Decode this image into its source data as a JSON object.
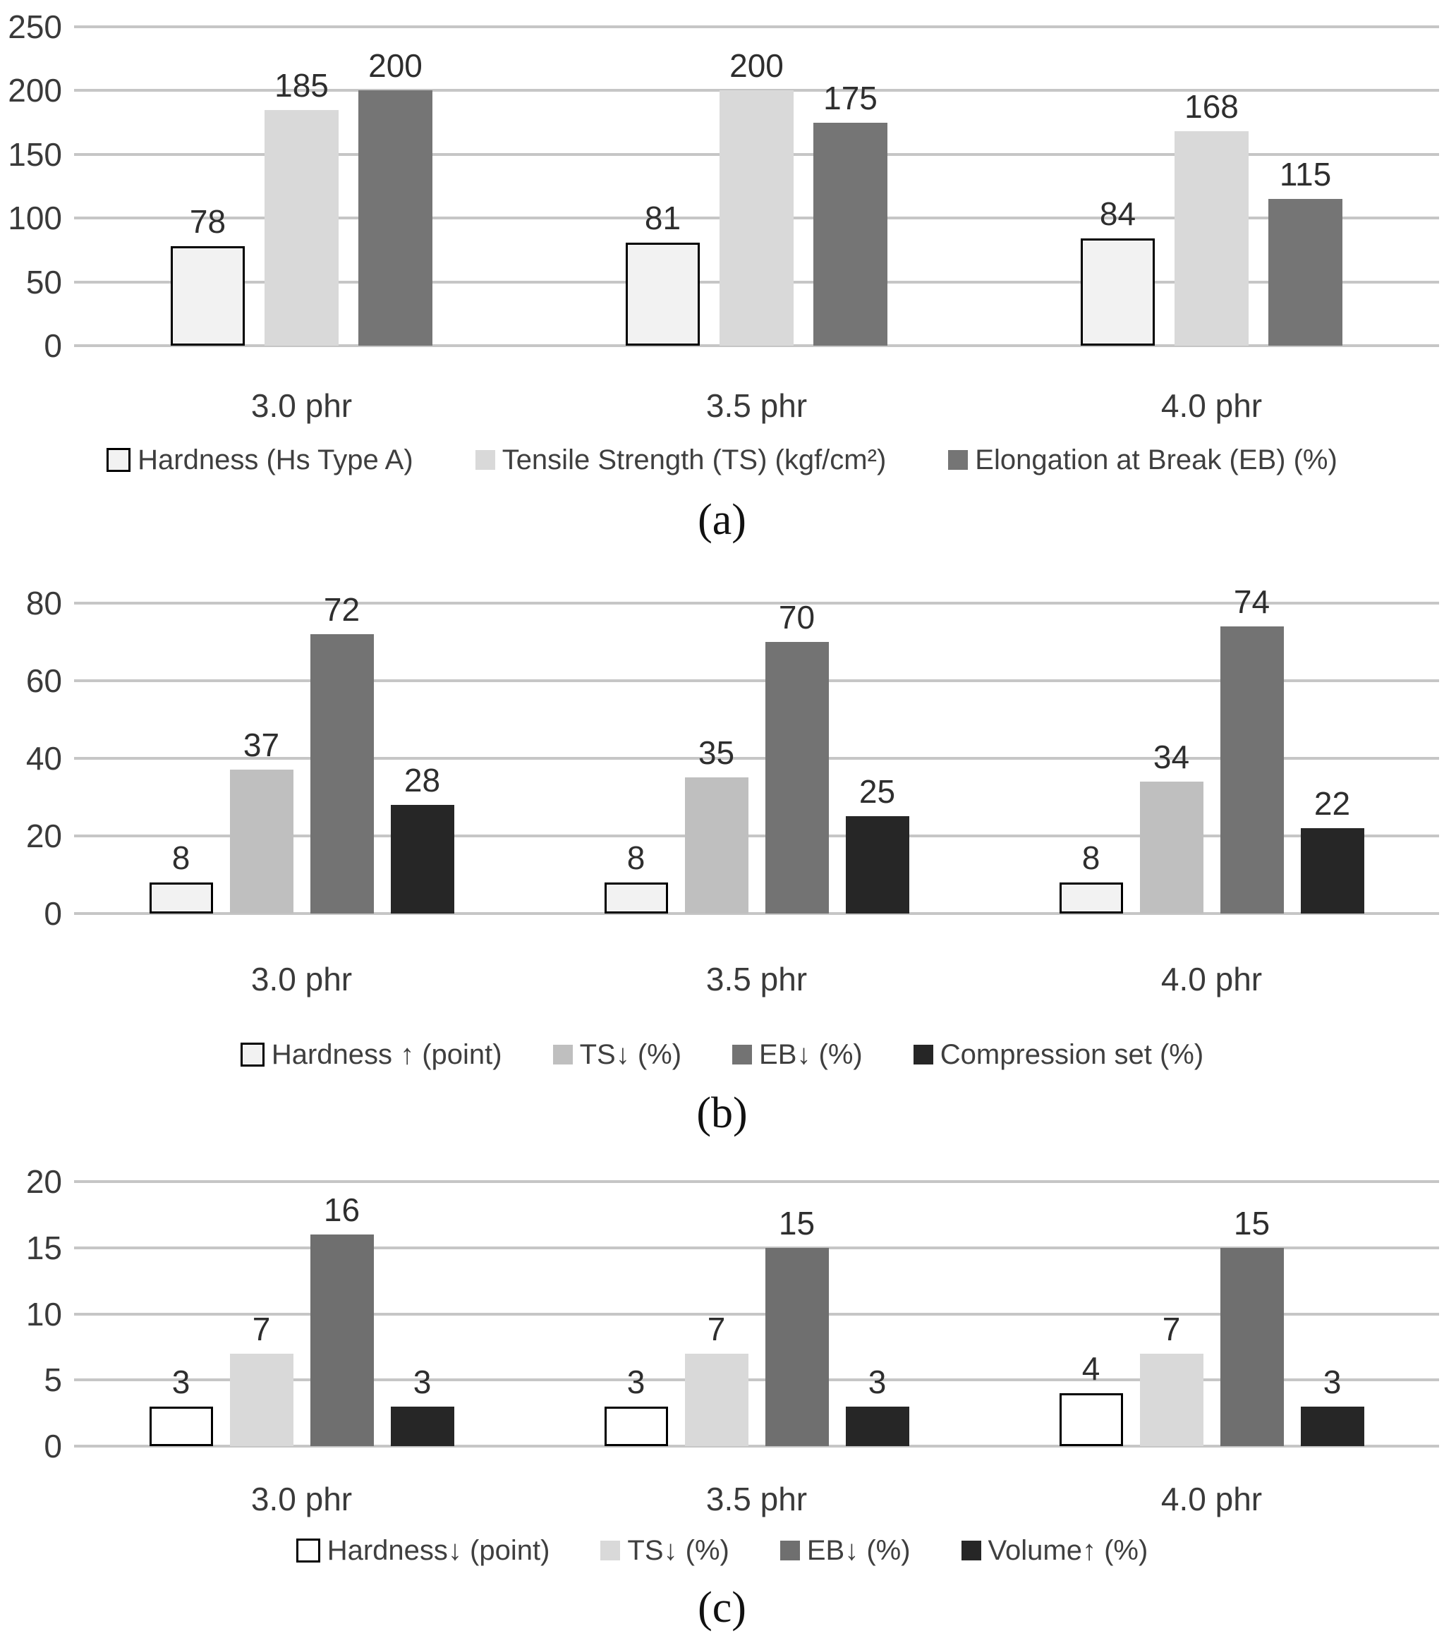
{
  "figure_title": "",
  "chart_data": [
    {
      "id": "a",
      "type": "bar",
      "caption": "(a)",
      "categories": [
        "3.0 phr",
        "3.5 phr",
        "4.0 phr"
      ],
      "series": [
        {
          "name": "Hardness (Hs Type A)",
          "values": [
            78,
            81,
            84
          ],
          "fill": "#f2f2f2",
          "border": "#000000"
        },
        {
          "name": "Tensile Strength (TS) (kgf/cm²)",
          "values": [
            185,
            200,
            168
          ],
          "fill": "#d9d9d9"
        },
        {
          "name": "Elongation at Break (EB) (%)",
          "values": [
            200,
            175,
            115
          ],
          "fill": "#757575"
        }
      ],
      "xlabel": "",
      "ylabel": "",
      "ylim": [
        0,
        250
      ],
      "ytick_step": 50,
      "yticks": [
        0,
        50,
        100,
        150,
        200,
        250
      ],
      "grid": "horizontal",
      "legend_position": "bottom",
      "data_labels": true
    },
    {
      "id": "b",
      "type": "bar",
      "caption": "(b)",
      "categories": [
        "3.0 phr",
        "3.5 phr",
        "4.0 phr"
      ],
      "series": [
        {
          "name": "Hardness ↑ (point)",
          "values": [
            8,
            8,
            8
          ],
          "fill": "#f2f2f2",
          "border": "#000000"
        },
        {
          "name": "TS↓ (%)",
          "values": [
            37,
            35,
            34
          ],
          "fill": "#bfbfbf"
        },
        {
          "name": "EB↓ (%)",
          "values": [
            72,
            70,
            74
          ],
          "fill": "#737373"
        },
        {
          "name": "Compression set (%)",
          "values": [
            28,
            25,
            22
          ],
          "fill": "#262626"
        }
      ],
      "xlabel": "",
      "ylabel": "",
      "ylim": [
        0,
        80
      ],
      "ytick_step": 20,
      "yticks": [
        0,
        20,
        40,
        60,
        80
      ],
      "grid": "horizontal",
      "legend_position": "bottom",
      "data_labels": true
    },
    {
      "id": "c",
      "type": "bar",
      "caption": "(c)",
      "categories": [
        "3.0 phr",
        "3.5 phr",
        "4.0 phr"
      ],
      "series": [
        {
          "name": "Hardness↓ (point)",
          "values": [
            3,
            3,
            4
          ],
          "fill": "#ffffff",
          "border": "#000000"
        },
        {
          "name": "TS↓ (%)",
          "values": [
            7,
            7,
            7
          ],
          "fill": "#d9d9d9"
        },
        {
          "name": "EB↓ (%)",
          "values": [
            16,
            15,
            15
          ],
          "fill": "#6f6f6f"
        },
        {
          "name": "Volume↑ (%)",
          "values": [
            3,
            3,
            3
          ],
          "fill": "#262626"
        }
      ],
      "xlabel": "",
      "ylabel": "",
      "ylim": [
        0,
        20
      ],
      "ytick_step": 5,
      "yticks": [
        0,
        5,
        10,
        15,
        20
      ],
      "grid": "horizontal",
      "legend_position": "bottom",
      "data_labels": true
    }
  ],
  "colors": {
    "gridline": "#c6c6c6",
    "axis_text": "#3a3a3a",
    "value_label_text": "#2e2e2e",
    "legend_text": "#3f3f3f",
    "caption_text": "#111111",
    "background": "#ffffff"
  }
}
